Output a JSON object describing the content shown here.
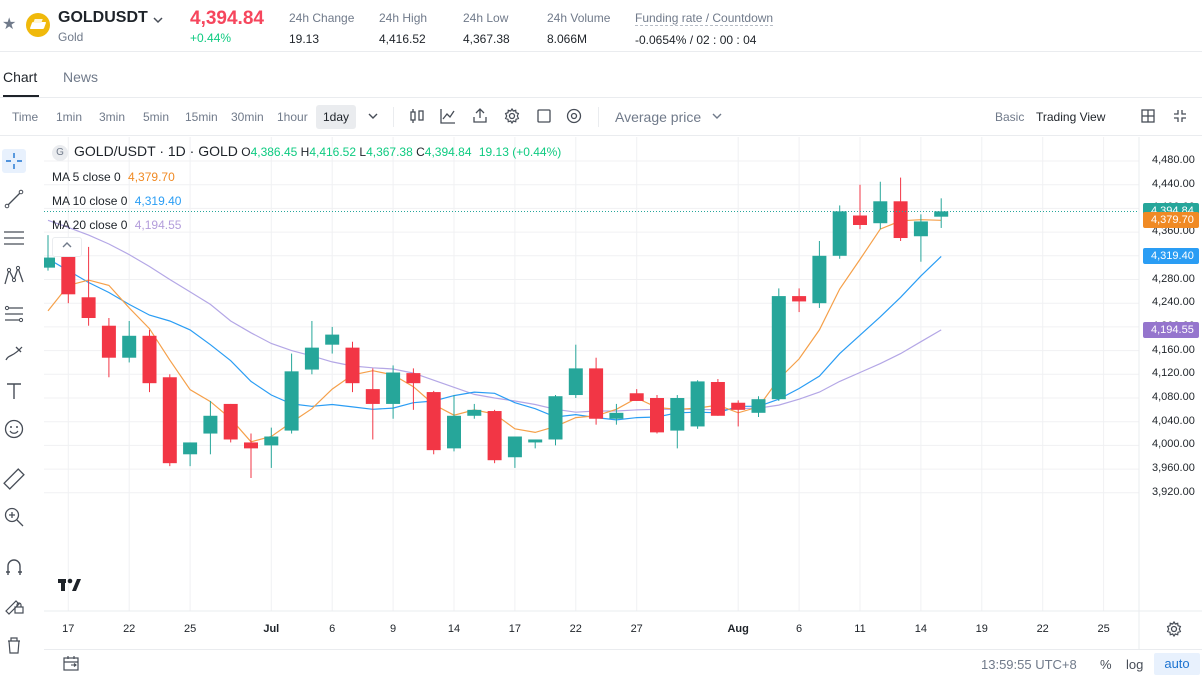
{
  "header": {
    "symbol": "GOLDUSDT",
    "subtitle": "Gold",
    "last_price": "4,394.84",
    "change_pct": "+0.44%",
    "stats": [
      {
        "label": "24h Change",
        "value": "19.13"
      },
      {
        "label": "24h High",
        "value": "4,416.52"
      },
      {
        "label": "24h Low",
        "value": "4,367.38"
      },
      {
        "label": "24h Volume",
        "value": "8.066M"
      },
      {
        "label": "Funding rate / Countdown",
        "value": "-0.0654% / 02 : 00 : 04"
      }
    ]
  },
  "tabs": [
    {
      "label": "Chart"
    },
    {
      "label": "News"
    }
  ],
  "toolbar": {
    "timeframes": [
      "Time",
      "1min",
      "3min",
      "5min",
      "15min",
      "30min",
      "1hour",
      "1day"
    ],
    "selected": "1day",
    "price_type": "Average price",
    "views": [
      "Basic",
      "Trading View"
    ]
  },
  "legend": {
    "title": "GOLD/USDT · 1D · GOLD",
    "ohlc": [
      {
        "k": "O",
        "v": "4,386.45"
      },
      {
        "k": "H",
        "v": "4,416.52"
      },
      {
        "k": "L",
        "v": "4,367.38"
      },
      {
        "k": "C",
        "v": "4,394.84"
      }
    ],
    "change": "19.13 (+0.44%)",
    "ma": [
      {
        "label": "MA 5 close 0",
        "value": "4,379.70",
        "color": "#f7a600"
      },
      {
        "label": "MA 10 close 0",
        "value": "4,319.40",
        "color": "#2a9df4"
      },
      {
        "label": "MA 20 close 0",
        "value": "4,194.55",
        "color": "#b39ddb"
      }
    ]
  },
  "colors": {
    "up": "#26a69a",
    "down": "#f23645",
    "ma5": "#f5a04a",
    "ma10": "#2a9df4",
    "ma20": "#b4a7e6"
  },
  "chart_data": {
    "type": "candlestick",
    "title": "GOLD/USDT · 1D · GOLD",
    "ylim": [
      3900,
      4500
    ],
    "y_ticks": [
      "4,480.00",
      "4,440.00",
      "4,400.00",
      "4,360.00",
      "4,320.00",
      "4,280.00",
      "4,240.00",
      "4,200.00",
      "4,160.00",
      "4,120.00",
      "4,080.00",
      "4,040.00",
      "4,000.00",
      "3,960.00",
      "3,920.00"
    ],
    "x_ticks": [
      {
        "label": "17",
        "i": 1
      },
      {
        "label": "22",
        "i": 4
      },
      {
        "label": "25",
        "i": 7
      },
      {
        "label": "Jul",
        "i": 11,
        "bold": true
      },
      {
        "label": "6",
        "i": 14
      },
      {
        "label": "9",
        "i": 17
      },
      {
        "label": "14",
        "i": 20
      },
      {
        "label": "17",
        "i": 23
      },
      {
        "label": "22",
        "i": 26
      },
      {
        "label": "27",
        "i": 29
      },
      {
        "label": "Aug",
        "i": 34,
        "bold": true
      },
      {
        "label": "6",
        "i": 37
      },
      {
        "label": "11",
        "i": 40
      },
      {
        "label": "14",
        "i": 43
      },
      {
        "label": "19",
        "i": 46
      },
      {
        "label": "22",
        "i": 49
      },
      {
        "label": "25",
        "i": 52
      }
    ],
    "candles": [
      {
        "o": 4300,
        "h": 4355,
        "l": 4295,
        "c": 4317
      },
      {
        "o": 4340,
        "h": 4345,
        "l": 4240,
        "c": 4255
      },
      {
        "o": 4250,
        "h": 4335,
        "l": 4202,
        "c": 4215
      },
      {
        "o": 4202,
        "h": 4215,
        "l": 4115,
        "c": 4148
      },
      {
        "o": 4148,
        "h": 4210,
        "l": 4140,
        "c": 4185
      },
      {
        "o": 4185,
        "h": 4195,
        "l": 4090,
        "c": 4105
      },
      {
        "o": 4115,
        "h": 4120,
        "l": 3965,
        "c": 3970
      },
      {
        "o": 3985,
        "h": 4005,
        "l": 3965,
        "c": 4005
      },
      {
        "o": 4020,
        "h": 4075,
        "l": 3985,
        "c": 4050
      },
      {
        "o": 4070,
        "h": 4070,
        "l": 4005,
        "c": 4010
      },
      {
        "o": 4005,
        "h": 4020,
        "l": 3945,
        "c": 3995
      },
      {
        "o": 4000,
        "h": 4030,
        "l": 3962,
        "c": 4015
      },
      {
        "o": 4025,
        "h": 4155,
        "l": 4020,
        "c": 4125
      },
      {
        "o": 4128,
        "h": 4210,
        "l": 4120,
        "c": 4165
      },
      {
        "o": 4170,
        "h": 4200,
        "l": 4155,
        "c": 4187
      },
      {
        "o": 4165,
        "h": 4175,
        "l": 4090,
        "c": 4105
      },
      {
        "o": 4095,
        "h": 4130,
        "l": 4010,
        "c": 4070
      },
      {
        "o": 4070,
        "h": 4135,
        "l": 4045,
        "c": 4123
      },
      {
        "o": 4122,
        "h": 4130,
        "l": 4060,
        "c": 4105
      },
      {
        "o": 4090,
        "h": 4092,
        "l": 3985,
        "c": 3992
      },
      {
        "o": 3995,
        "h": 4085,
        "l": 3990,
        "c": 4050
      },
      {
        "o": 4050,
        "h": 4070,
        "l": 4045,
        "c": 4060
      },
      {
        "o": 4058,
        "h": 4060,
        "l": 3970,
        "c": 3975
      },
      {
        "o": 3980,
        "h": 4015,
        "l": 3962,
        "c": 4015
      },
      {
        "o": 4005,
        "h": 4010,
        "l": 3995,
        "c": 4010
      },
      {
        "o": 4010,
        "h": 4085,
        "l": 4000,
        "c": 4083
      },
      {
        "o": 4085,
        "h": 4170,
        "l": 4080,
        "c": 4130
      },
      {
        "o": 4130,
        "h": 4148,
        "l": 4035,
        "c": 4045
      },
      {
        "o": 4045,
        "h": 4070,
        "l": 4035,
        "c": 4055
      },
      {
        "o": 4088,
        "h": 4095,
        "l": 4075,
        "c": 4075
      },
      {
        "o": 4080,
        "h": 4085,
        "l": 4020,
        "c": 4022
      },
      {
        "o": 4025,
        "h": 4085,
        "l": 3995,
        "c": 4080
      },
      {
        "o": 4032,
        "h": 4110,
        "l": 4028,
        "c": 4108
      },
      {
        "o": 4107,
        "h": 4112,
        "l": 4050,
        "c": 4050
      },
      {
        "o": 4072,
        "h": 4076,
        "l": 4032,
        "c": 4060
      },
      {
        "o": 4055,
        "h": 4083,
        "l": 4048,
        "c": 4078
      },
      {
        "o": 4078,
        "h": 4265,
        "l": 4075,
        "c": 4252
      },
      {
        "o": 4252,
        "h": 4265,
        "l": 4225,
        "c": 4243
      },
      {
        "o": 4240,
        "h": 4345,
        "l": 4232,
        "c": 4320
      },
      {
        "o": 4320,
        "h": 4405,
        "l": 4315,
        "c": 4395
      },
      {
        "o": 4388,
        "h": 4440,
        "l": 4365,
        "c": 4372
      },
      {
        "o": 4375,
        "h": 4445,
        "l": 4365,
        "c": 4412
      },
      {
        "o": 4412,
        "h": 4452,
        "l": 4345,
        "c": 4350
      },
      {
        "o": 4353,
        "h": 4390,
        "l": 4310,
        "c": 4378
      },
      {
        "o": 4386,
        "h": 4417,
        "l": 4367,
        "c": 4395
      }
    ],
    "ma5": [
      4227,
      4270,
      4279,
      4270,
      4232,
      4197,
      4144,
      4094,
      4074,
      4045,
      4006,
      4015,
      4039,
      4062,
      4095,
      4119,
      4126,
      4119,
      4099,
      4069,
      4051,
      4060,
      4053,
      4028,
      4022,
      4032,
      4047,
      4050,
      4061,
      4080,
      4064,
      4061,
      4063,
      4068,
      4055,
      4065,
      4112,
      4146,
      4195,
      4264,
      4314,
      4365,
      4379,
      4381,
      4380
    ],
    "ma10": [
      4315,
      4295,
      4275,
      4258,
      4238,
      4220,
      4210,
      4195,
      4170,
      4143,
      4108,
      4085,
      4070,
      4066,
      4069,
      4065,
      4061,
      4063,
      4072,
      4075,
      4084,
      4090,
      4088,
      4072,
      4062,
      4048,
      4052,
      4047,
      4043,
      4047,
      4048,
      4055,
      4056,
      4055,
      4066,
      4066,
      4078,
      4096,
      4117,
      4155,
      4186,
      4217,
      4250,
      4286,
      4319
    ],
    "ma20": [
      4380,
      4368,
      4355,
      4340,
      4322,
      4302,
      4280,
      4259,
      4238,
      4210,
      4190,
      4172,
      4160,
      4151,
      4141,
      4134,
      4131,
      4129,
      4122,
      4110,
      4098,
      4086,
      4080,
      4075,
      4069,
      4061,
      4056,
      4058,
      4058,
      4060,
      4061,
      4061,
      4061,
      4060,
      4062,
      4063,
      4068,
      4078,
      4090,
      4108,
      4123,
      4138,
      4155,
      4175,
      4195
    ],
    "last_close": 4394.84,
    "price_tags": [
      {
        "value": 4394.84,
        "label": "4,394.84",
        "color": "#26a69a"
      },
      {
        "value": 4379.7,
        "label": "4,379.70",
        "color": "#f08a24"
      },
      {
        "value": 4319.4,
        "label": "4,319.40",
        "color": "#2a9df4"
      },
      {
        "value": 4194.55,
        "label": "4,194.55",
        "color": "#9575cd"
      }
    ]
  },
  "footer": {
    "time": "13:59:55 UTC+8",
    "pct": "%",
    "log": "log",
    "auto": "auto"
  }
}
